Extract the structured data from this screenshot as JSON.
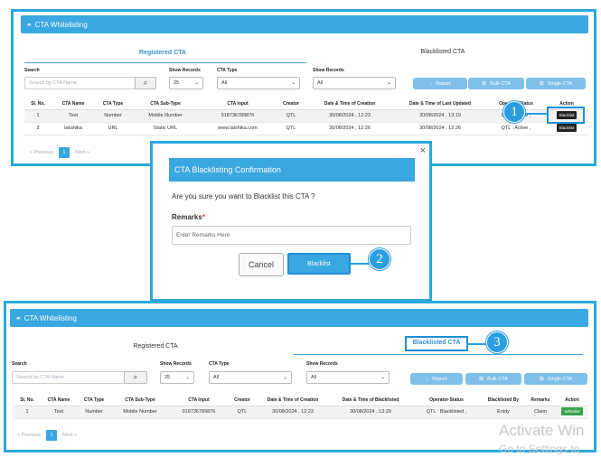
{
  "colors": {
    "accent": "#39a7e0",
    "highlight": "#1d8ed8",
    "blacklist_badge": "#222222",
    "whitelist_badge": "#3aa34a"
  },
  "top": {
    "title": "CTA Whitelisting",
    "tabs": [
      "Registered CTA",
      "Blacklisted CTA"
    ],
    "search_label": "Search",
    "search_placeholder": "Search by CTA Name",
    "show_records_label": "Show Records",
    "show_records_value": "25",
    "cta_type_label": "CTA Type",
    "cta_type_value": "All",
    "show_records2_label": "Show Records",
    "show_records2_value": "All",
    "buttons": [
      "Report",
      "Bulk CTA",
      "Single CTA"
    ],
    "columns": [
      "Sl. No.",
      "CTA Name",
      "CTA Type",
      "CTA Sub-Type",
      "CTA Input",
      "Creator",
      "Date & Time of Creation",
      "Date & Time of Last Updated",
      "Operator Status",
      "Action"
    ],
    "rows": [
      [
        "1",
        "Test",
        "Number",
        "Mobile Number",
        "918736789876",
        "QTL",
        "30/08/2024 , 12:23",
        "30/08/2024 , 13:19",
        "QTL : Active ,",
        "Blacklist"
      ],
      [
        "2",
        "lakshika",
        "URL",
        "Static URL",
        "www.lalshika.com",
        "QTL",
        "30/08/2024 , 12:26",
        "30/08/2024 , 12:26",
        "QTL : Active ,",
        "Blacklist"
      ]
    ],
    "pager": {
      "prev": "« Previous",
      "page": "1",
      "next": "Next »"
    }
  },
  "modal": {
    "close": "×",
    "title": "CTA Blacklisting Confirmation",
    "question": "Are you sure you want to Blacklist this CTA ?",
    "remarks_label": "Remarks",
    "required_mark": "*",
    "remarks_placeholder": "Enter Remarks Here",
    "cancel": "Cancel",
    "confirm": "Blacklist"
  },
  "bottom": {
    "title": "CTA Whitelisting",
    "tabs": [
      "Registered CTA",
      "Blacklisted CTA"
    ],
    "search_label": "Search",
    "search_placeholder": "Search by CTA Name",
    "show_records_label": "Show Records",
    "show_records_value": "25",
    "cta_type_label": "CTA Type",
    "cta_type_value": "All",
    "show_records2_label": "Show Records",
    "show_records2_value": "All",
    "buttons": [
      "Report",
      "Bulk CTA",
      "Single CTA"
    ],
    "columns": [
      "Sl. No.",
      "CTA Name",
      "CTA Type",
      "CTA Sub-Type",
      "CTA Input",
      "Creator",
      "Date & Time of Creation",
      "Date & Time of Blacklisted",
      "Operator Status",
      "Blacklisted By",
      "Remarks",
      "Action"
    ],
    "rows": [
      [
        "1",
        "Test",
        "Number",
        "Mobile Number",
        "918736789876",
        "QTL",
        "30/08/2024 , 12:23",
        "30/08/2024 , 13:29",
        "QTL : Blacklisted ,",
        "Entity",
        "Claim",
        "Whitelist"
      ]
    ],
    "pager": {
      "prev": "« Previous",
      "page": "1",
      "next": "Next »"
    }
  },
  "steps": [
    "1",
    "2",
    "3"
  ],
  "watermark": [
    "Activate Win",
    "Go to Settings to"
  ]
}
